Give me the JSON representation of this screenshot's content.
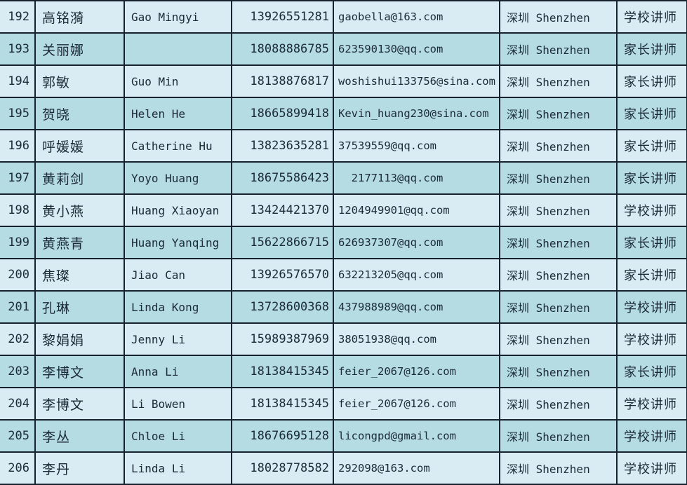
{
  "table": {
    "description": "contact list spreadsheet fragment, rows 192-206",
    "columns": [
      "row_number",
      "chinese_name",
      "english_name",
      "phone",
      "email",
      "city",
      "role"
    ],
    "rows": [
      {
        "index": "192",
        "name_zh": "高铭漪",
        "name_en": "Gao Mingyi",
        "phone": "13926551281",
        "email": "gaobella@163.com",
        "city": "深圳 Shenzhen",
        "role": "学校讲师"
      },
      {
        "index": "193",
        "name_zh": "关丽娜",
        "name_en": "",
        "phone": "18088886785",
        "email": "623590130@qq.com",
        "city": "深圳 Shenzhen",
        "role": "家长讲师"
      },
      {
        "index": "194",
        "name_zh": "郭敏",
        "name_en": "Guo Min",
        "phone": "18138876817",
        "email": "woshishui133756@sina.com",
        "city": "深圳 Shenzhen",
        "role": "家长讲师"
      },
      {
        "index": "195",
        "name_zh": "贺晓",
        "name_en": "Helen He",
        "phone": "18665899418",
        "email": "Kevin_huang230@sina.com",
        "city": "深圳 Shenzhen",
        "role": "家长讲师"
      },
      {
        "index": "196",
        "name_zh": "呼媛媛",
        "name_en": "Catherine Hu",
        "phone": "13823635281",
        "email": "37539559@qq.com",
        "city": "深圳 Shenzhen",
        "role": "家长讲师"
      },
      {
        "index": "197",
        "name_zh": "黄莉剑",
        "name_en": "Yoyo Huang",
        "phone": "18675586423",
        "email": "  2177113@qq.com",
        "city": "深圳 Shenzhen",
        "role": "家长讲师"
      },
      {
        "index": "198",
        "name_zh": "黄小燕",
        "name_en": "Huang Xiaoyan",
        "phone": "13424421370",
        "email": "1204949901@qq.com",
        "city": "深圳 Shenzhen",
        "role": "学校讲师"
      },
      {
        "index": "199",
        "name_zh": "黄燕青",
        "name_en": "Huang Yanqing",
        "phone": "15622866715",
        "email": "626937307@qq.com",
        "city": "深圳 Shenzhen",
        "role": "家长讲师"
      },
      {
        "index": "200",
        "name_zh": "焦璨",
        "name_en": "Jiao Can",
        "phone": "13926576570",
        "email": "632213205@qq.com",
        "city": "深圳 Shenzhen",
        "role": "家长讲师"
      },
      {
        "index": "201",
        "name_zh": "孔琳",
        "name_en": "Linda Kong",
        "phone": "13728600368",
        "email": "437988989@qq.com",
        "city": "深圳 Shenzhen",
        "role": "学校讲师"
      },
      {
        "index": "202",
        "name_zh": "黎娟娟",
        "name_en": "Jenny Li",
        "phone": "15989387969",
        "email": "38051938@qq.com",
        "city": "深圳 Shenzhen",
        "role": "学校讲师"
      },
      {
        "index": "203",
        "name_zh": "李博文",
        "name_en": "Anna Li",
        "phone": "18138415345",
        "email": "feier_2067@126.com",
        "city": "深圳 Shenzhen",
        "role": "家长讲师"
      },
      {
        "index": "204",
        "name_zh": "李博文",
        "name_en": "Li Bowen",
        "phone": "18138415345",
        "email": "feier_2067@126.com",
        "city": "深圳 Shenzhen",
        "role": "学校讲师"
      },
      {
        "index": "205",
        "name_zh": "李丛",
        "name_en": "Chloe Li",
        "phone": "18676695128",
        "email": "licongpd@gmail.com",
        "city": "深圳 Shenzhen",
        "role": "学校讲师"
      },
      {
        "index": "206",
        "name_zh": "李丹",
        "name_en": "Linda Li",
        "phone": "18028778582",
        "email": "292098@163.com",
        "city": "深圳 Shenzhen",
        "role": "学校讲师"
      }
    ]
  },
  "colors": {
    "row_light": "#d9ecf3",
    "row_dark": "#b5dce3",
    "border": "#16222e",
    "text": "#1b2a36"
  }
}
